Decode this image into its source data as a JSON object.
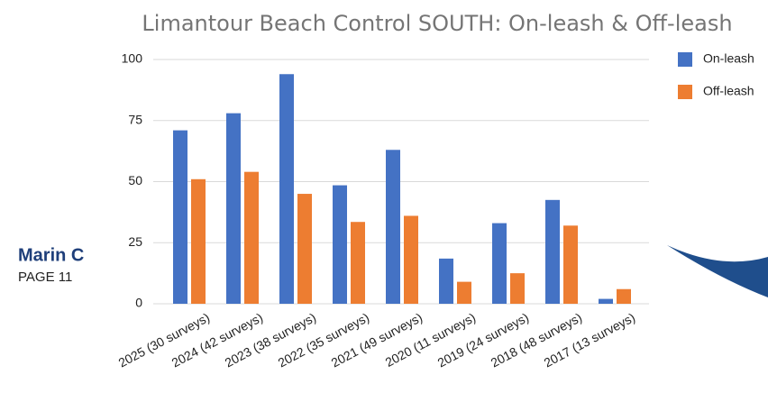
{
  "chart_data": {
    "type": "bar",
    "title": "Limantour Beach Control SOUTH: On-leash & Off-leash",
    "categories": [
      "2025 (30 surveys)",
      "2024 (42 surveys)",
      "2023 (38 surveys)",
      "2022 (35 surveys)",
      "2021 (49 surveys)",
      "2020 (11 surveys)",
      "2019 (24 surveys)",
      "2018 (48 surveys)",
      "2017 (13 surveys)"
    ],
    "series": [
      {
        "name": "On-leash",
        "color": "#4472c4",
        "values": [
          71,
          78,
          94,
          48.5,
          63,
          18.5,
          33,
          42.5,
          2
        ]
      },
      {
        "name": "Off-leash",
        "color": "#ed7d31",
        "values": [
          51,
          54,
          45,
          33.5,
          36,
          9,
          12.5,
          32,
          6
        ]
      }
    ],
    "ylim": [
      0,
      100
    ],
    "yticks": [
      0,
      25,
      50,
      75,
      100
    ],
    "grid": true,
    "legend": "right"
  },
  "slide": {
    "heading": "Marin C",
    "page": "PAGE 11"
  }
}
